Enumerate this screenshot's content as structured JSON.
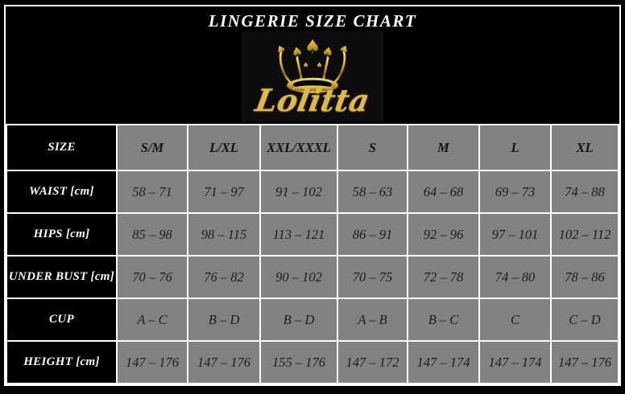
{
  "header": {
    "title": "LINGERIE SIZE CHART",
    "brand_name": "Lolitta",
    "logo_icon": "crown-icon"
  },
  "chart_data": {
    "type": "table",
    "title": "LINGERIE SIZE CHART",
    "corner_label": "SIZE",
    "columns": [
      "S/M",
      "L/XL",
      "XXL/XXXL",
      "S",
      "M",
      "L",
      "XL"
    ],
    "rows": [
      {
        "label": "WAIST [cm]",
        "values": [
          "58 – 71",
          "71 – 97",
          "91 – 102",
          "58 – 63",
          "64 – 68",
          "69 – 73",
          "74 – 88"
        ]
      },
      {
        "label": "HIPS [cm]",
        "values": [
          "85 – 98",
          "98 – 115",
          "113 – 121",
          "86 – 91",
          "92 – 96",
          "97 – 101",
          "102 – 112"
        ]
      },
      {
        "label": "UNDER BUST [cm]",
        "values": [
          "70 – 76",
          "76 – 82",
          "90 – 102",
          "70 – 75",
          "72 – 78",
          "74 – 80",
          "78 – 86"
        ]
      },
      {
        "label": "CUP",
        "values": [
          "A – C",
          "B – D",
          "B – D",
          "A – B",
          "B – C",
          "C",
          "C – D"
        ]
      },
      {
        "label": "HEIGHT [cm]",
        "values": [
          "147 – 176",
          "147 – 176",
          "155 – 176",
          "147 – 172",
          "147 – 174",
          "147 – 174",
          "147 – 176"
        ]
      }
    ],
    "layout": {
      "label_column_background": "#000000",
      "data_cell_background": "#828282",
      "gridline_color": "#ffffff",
      "grid": true
    }
  },
  "colors": {
    "background": "#000000",
    "frame": "#ffffff",
    "gold": "#cfa334",
    "brand_gold": "#ddb94e",
    "cell_gray": "#828282",
    "cell_text": "#1d1d1d",
    "label_text": "#ffffff"
  }
}
